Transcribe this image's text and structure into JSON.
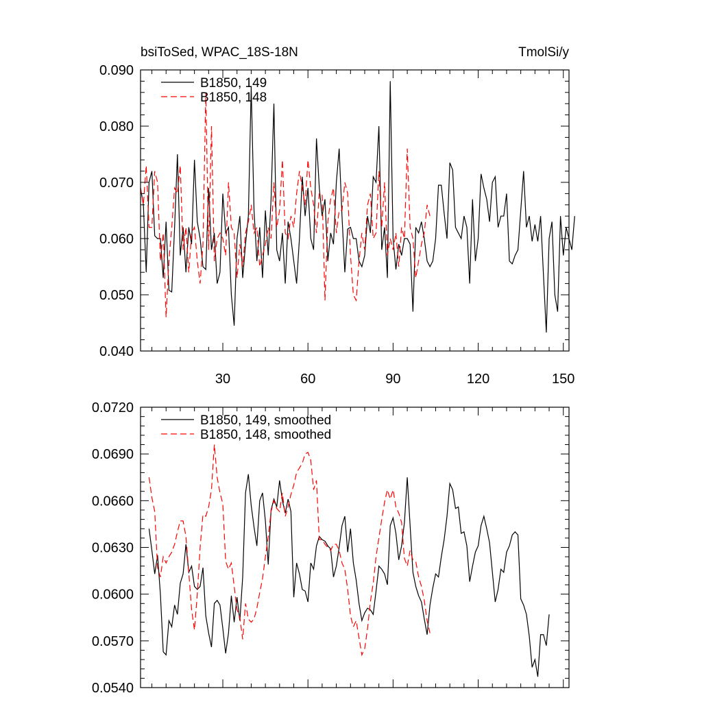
{
  "chart_data": [
    {
      "type": "line",
      "title": "bsiToSed, WPAC_18S-18N",
      "units": "TmolSi/y",
      "xlim": [
        1,
        152
      ],
      "ylim": [
        0.04,
        0.09
      ],
      "x_ticks": [
        30,
        60,
        90,
        120,
        150
      ],
      "x_tick_labels": [
        "30",
        "60",
        "90",
        "120",
        "150"
      ],
      "y_ticks": [
        0.04,
        0.05,
        0.06,
        0.07,
        0.08,
        0.09
      ],
      "y_tick_labels": [
        "0.040",
        "0.050",
        "0.060",
        "0.070",
        "0.080",
        "0.090"
      ],
      "legend_position": "top-left",
      "series": [
        {
          "name": "B1850, 149",
          "color": "#000000",
          "dash": "solid",
          "x_start": 1,
          "values": [
            0.069,
            0.066,
            0.054,
            0.07,
            0.072,
            0.0605,
            0.06,
            0.06,
            0.053,
            0.063,
            0.0508,
            0.0505,
            0.062,
            0.075,
            0.057,
            0.062,
            0.054,
            0.062,
            0.059,
            0.074,
            0.063,
            0.06,
            0.055,
            0.0545,
            0.069,
            0.058,
            0.061,
            0.052,
            0.054,
            0.068,
            0.061,
            0.062,
            0.05,
            0.0445,
            0.06,
            0.064,
            0.053,
            0.059,
            0.064,
            0.087,
            0.065,
            0.056,
            0.062,
            0.053,
            0.065,
            0.057,
            0.067,
            0.084,
            0.058,
            0.056,
            0.061,
            0.052,
            0.063,
            0.06,
            0.056,
            0.052,
            0.06,
            0.071,
            0.064,
            0.069,
            0.06,
            0.058,
            0.0778,
            0.069,
            0.064,
            0.067,
            0.056,
            0.061,
            0.059,
            0.07,
            0.076,
            0.064,
            0.054,
            0.0617,
            0.062,
            0.06,
            0.06,
            0.056,
            0.055,
            0.057,
            0.064,
            0.061,
            0.071,
            0.07,
            0.08,
            0.058,
            0.062,
            0.053,
            0.088,
            0.06,
            0.0545,
            0.059,
            0.057,
            0.06,
            0.06,
            0.059,
            0.047,
            0.062,
            0.061,
            0.063,
            0.06,
            0.056,
            0.055,
            0.056,
            0.06,
            0.0695,
            0.0695,
            0.0645,
            0.06,
            0.0735,
            0.0722,
            0.062,
            0.061,
            0.06,
            0.064,
            0.062,
            0.052,
            0.067,
            0.056,
            0.06,
            0.0715,
            0.069,
            0.067,
            0.063,
            0.07,
            0.071,
            0.062,
            0.064,
            0.064,
            0.068,
            0.056,
            0.0555,
            0.057,
            0.058,
            0.065,
            0.072,
            0.062,
            0.064,
            0.0595,
            0.0625,
            0.0595,
            0.064,
            0.0535,
            0.0433,
            0.06,
            0.063,
            0.05,
            0.047,
            0.064,
            0.057,
            0.062,
            0.06,
            0.058,
            0.064
          ]
        },
        {
          "name": "B1850, 148",
          "color": "#ff0000",
          "dash": "dashed",
          "x_start": 1,
          "values": [
            0.069,
            0.066,
            0.073,
            0.062,
            0.062,
            0.072,
            0.07,
            0.056,
            0.061,
            0.046,
            0.056,
            0.062,
            0.069,
            0.068,
            0.073,
            0.058,
            0.062,
            0.054,
            0.061,
            0.062,
            0.056,
            0.052,
            0.059,
            0.086,
            0.058,
            0.08,
            0.056,
            0.06,
            0.061,
            0.06,
            0.057,
            0.07,
            0.062,
            0.061,
            0.053,
            0.059,
            0.055,
            0.061,
            0.063,
            0.066,
            0.061,
            0.062,
            0.055,
            0.057,
            0.059,
            0.062,
            0.06,
            0.07,
            0.062,
            0.065,
            0.074,
            0.061,
            0.06,
            0.064,
            0.062,
            0.068,
            0.072,
            0.069,
            0.066,
            0.074,
            0.069,
            0.066,
            0.061,
            0.068,
            0.068,
            0.049,
            0.063,
            0.067,
            0.069,
            0.061,
            0.065,
            0.065,
            0.07,
            0.068,
            0.057,
            0.05,
            0.049,
            0.056,
            0.061,
            0.058,
            0.066,
            0.068,
            0.06,
            0.061,
            0.072,
            0.062,
            0.07,
            0.057,
            0.06,
            0.058,
            0.061,
            0.055,
            0.062,
            0.06,
            0.076,
            0.062,
            0.06,
            0.053,
            0.056,
            0.059,
            0.061,
            0.066,
            0.064
          ]
        }
      ]
    },
    {
      "type": "line",
      "xlim": [
        1,
        152
      ],
      "ylim": [
        0.054,
        0.072
      ],
      "x_ticks": [
        30,
        60,
        90,
        120,
        150
      ],
      "y_ticks": [
        0.054,
        0.057,
        0.06,
        0.063,
        0.066,
        0.069,
        0.072
      ],
      "y_tick_labels": [
        "0.0540",
        "0.0570",
        "0.0600",
        "0.0630",
        "0.0660",
        "0.0690",
        "0.0720"
      ],
      "legend_position": "top-left",
      "series": [
        {
          "name": "B1850, 149, smoothed",
          "color": "#000000",
          "dash": "solid",
          "x_start": 4,
          "values": [
            0.0642,
            0.0628,
            0.0613,
            0.0625,
            0.06,
            0.0563,
            0.0561,
            0.0583,
            0.0579,
            0.0593,
            0.0587,
            0.0607,
            0.0613,
            0.0632,
            0.0614,
            0.0618,
            0.0605,
            0.0603,
            0.0605,
            0.0617,
            0.0586,
            0.0575,
            0.0566,
            0.0594,
            0.0596,
            0.0593,
            0.0578,
            0.0562,
            0.0575,
            0.0599,
            0.0582,
            0.0598,
            0.0583,
            0.0611,
            0.0665,
            0.0677,
            0.0657,
            0.0643,
            0.0631,
            0.066,
            0.0665,
            0.0647,
            0.0619,
            0.0654,
            0.0661,
            0.0656,
            0.0673,
            0.066,
            0.0652,
            0.0661,
            0.0653,
            0.0598,
            0.062,
            0.0613,
            0.0603,
            0.0602,
            0.0595,
            0.062,
            0.0616,
            0.0631,
            0.0637,
            0.0635,
            0.0634,
            0.0631,
            0.0629,
            0.0611,
            0.0618,
            0.063,
            0.0644,
            0.065,
            0.0627,
            0.0642,
            0.062,
            0.0609,
            0.0594,
            0.0583,
            0.0588,
            0.0591,
            0.059,
            0.0587,
            0.0602,
            0.0618,
            0.0616,
            0.0613,
            0.0606,
            0.0644,
            0.0649,
            0.0639,
            0.0622,
            0.0631,
            0.0646,
            0.0675,
            0.0644,
            0.0614,
            0.0605,
            0.0599,
            0.0595,
            0.0584,
            0.0574,
            0.0593,
            0.0604,
            0.0613,
            0.0611,
            0.0624,
            0.0635,
            0.065,
            0.0671,
            0.0667,
            0.0655,
            0.0656,
            0.0639,
            0.064,
            0.0631,
            0.0608,
            0.0618,
            0.0627,
            0.0631,
            0.0644,
            0.065,
            0.0642,
            0.0633,
            0.0614,
            0.0595,
            0.0603,
            0.0616,
            0.0614,
            0.0627,
            0.0631,
            0.0638,
            0.064,
            0.0638,
            0.0597,
            0.0593,
            0.0587,
            0.0573,
            0.0553,
            0.0558,
            0.0547,
            0.0574,
            0.0574,
            0.0567,
            0.0587
          ]
        },
        {
          "name": "B1850, 148, smoothed",
          "color": "#ff0000",
          "dash": "dashed",
          "x_start": 4,
          "values": [
            0.0675,
            0.0662,
            0.0653,
            0.0617,
            0.0611,
            0.0624,
            0.062,
            0.0624,
            0.0627,
            0.0632,
            0.064,
            0.0647,
            0.0647,
            0.0637,
            0.0614,
            0.059,
            0.0577,
            0.06,
            0.063,
            0.0651,
            0.065,
            0.0656,
            0.0667,
            0.0696,
            0.0675,
            0.0665,
            0.0658,
            0.0621,
            0.0616,
            0.062,
            0.0605,
            0.059,
            0.0585,
            0.0571,
            0.0594,
            0.0584,
            0.0582,
            0.0584,
            0.0591,
            0.0601,
            0.061,
            0.0624,
            0.0637,
            0.0653,
            0.066,
            0.0655,
            0.0653,
            0.0665,
            0.065,
            0.0656,
            0.0664,
            0.067,
            0.0678,
            0.0681,
            0.0684,
            0.069,
            0.0691,
            0.0686,
            0.0667,
            0.0673,
            0.0635,
            0.0635,
            0.0632,
            0.063,
            0.0628,
            0.0632,
            0.0632,
            0.0628,
            0.062,
            0.0616,
            0.0603,
            0.0586,
            0.0579,
            0.0583,
            0.0572,
            0.0561,
            0.0565,
            0.0578,
            0.0595,
            0.0607,
            0.0624,
            0.0636,
            0.0648,
            0.0659,
            0.0667,
            0.0661,
            0.0667,
            0.0656,
            0.0652,
            0.0646,
            0.0623,
            0.0618,
            0.0628,
            0.0622,
            0.0621,
            0.0611,
            0.0605,
            0.0596,
            0.0583,
            0.0575
          ]
        }
      ]
    }
  ]
}
